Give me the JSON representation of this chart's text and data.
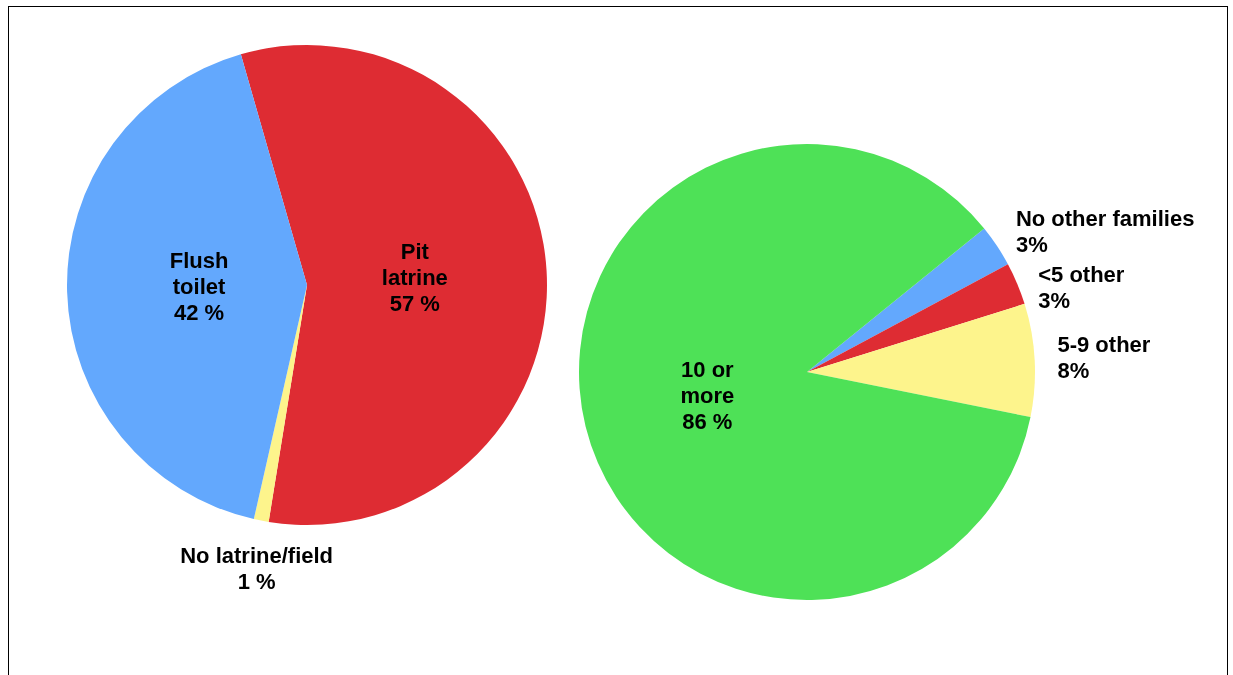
{
  "chart_data": [
    {
      "type": "pie",
      "categories": [
        "Pit latrine",
        "No latrine/field",
        "Flush toilet"
      ],
      "values": [
        57,
        1,
        42
      ],
      "colors": [
        "#de2c33",
        "#fdf48c",
        "#63a8fd"
      ],
      "value_labels": [
        "57 %",
        "1 %",
        "42 %"
      ]
    },
    {
      "type": "pie",
      "categories": [
        "No other families",
        "<5 other",
        "5-9 other",
        "10 or more"
      ],
      "values": [
        3,
        3,
        8,
        86
      ],
      "colors": [
        "#63a8fd",
        "#de2c33",
        "#fdf48c",
        "#4ee157"
      ],
      "value_labels": [
        "3%",
        "3%",
        "8%",
        "86 %"
      ]
    }
  ]
}
